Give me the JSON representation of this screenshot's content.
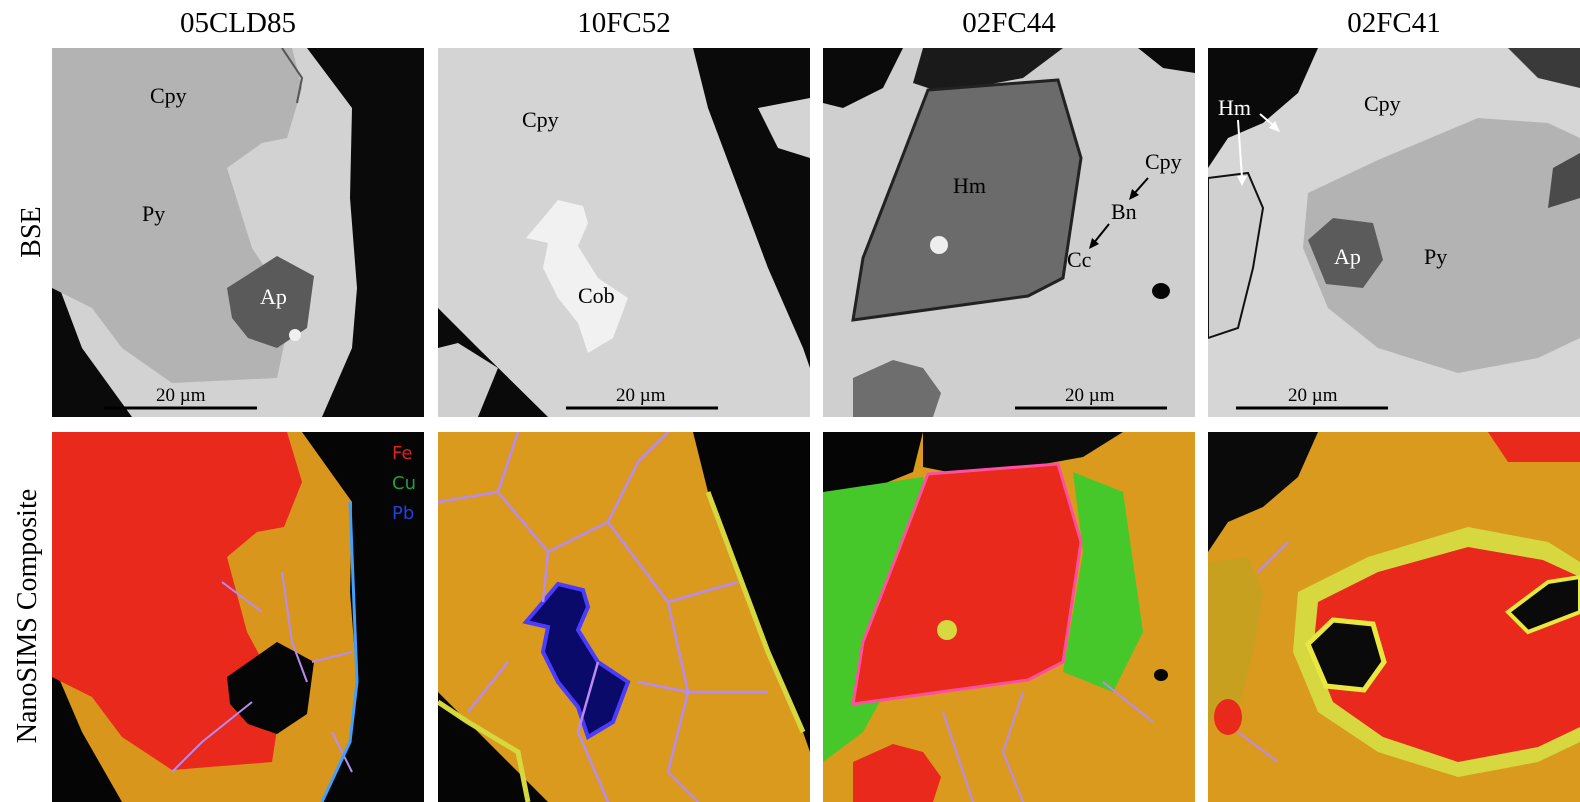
{
  "columns": [
    {
      "title": "05CLD85"
    },
    {
      "title": "10FC52"
    },
    {
      "title": "02FC44"
    },
    {
      "title": "02FC41"
    }
  ],
  "rows": {
    "bse": "BSE",
    "nano": "NanoSIMS Composite"
  },
  "scale_bar": "20 µm",
  "bse_labels": {
    "p1": {
      "cpy": "Cpy",
      "py": "Py",
      "ap": "Ap"
    },
    "p2": {
      "cpy": "Cpy",
      "cob": "Cob"
    },
    "p3": {
      "hm": "Hm",
      "cpy": "Cpy",
      "bn": "Bn",
      "cc": "Cc"
    },
    "p4": {
      "hm": "Hm",
      "cpy": "Cpy",
      "ap": "Ap",
      "py": "Py"
    }
  },
  "legend": [
    {
      "label": "Fe",
      "color": "#e02020"
    },
    {
      "label": "Cu",
      "color": "#20a040"
    },
    {
      "label": "Pb",
      "color": "#2040e0"
    }
  ],
  "colors": {
    "matrix_dark": "#0a0a0a",
    "bse_cpy": "#d4d4d4",
    "bse_py": "#b3b3b3",
    "bse_hm": "#6e6e6e",
    "bse_ap": "#5a5a5a",
    "bse_cob": "#f0f0f0",
    "nano_cpy": "#d99a1e",
    "nano_py": "#e8291c",
    "nano_boundary": "#b98bf0",
    "nano_cu": "#46c82a",
    "nano_rim": "#d7d840"
  }
}
